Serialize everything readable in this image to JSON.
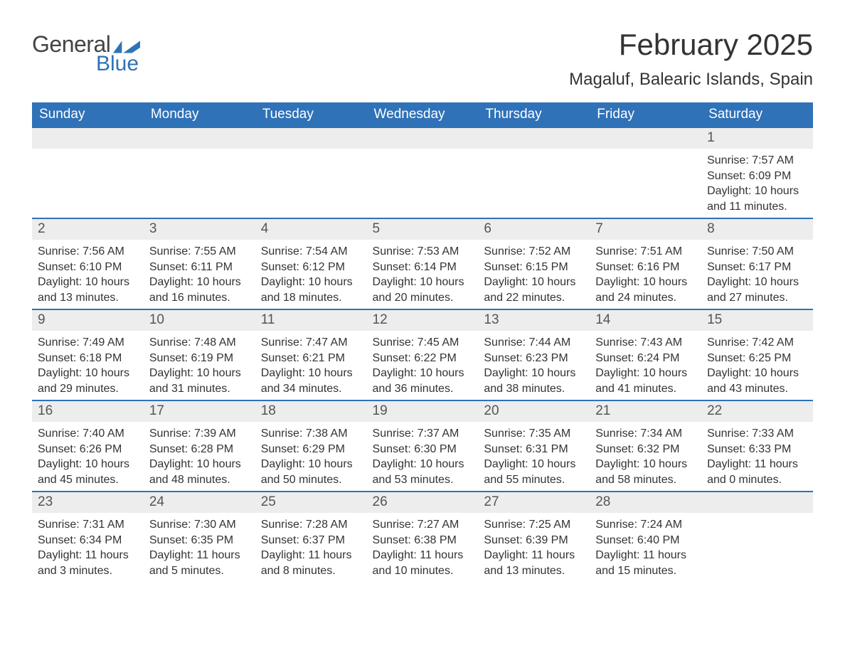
{
  "brand": {
    "part1": "General",
    "part2": "Blue"
  },
  "title": "February 2025",
  "location": "Magaluf, Balearic Islands, Spain",
  "colors": {
    "header_bg": "#2f72b8",
    "header_text": "#ffffff",
    "daynum_bg": "#ededed",
    "text": "#333333",
    "row_border": "#2f72b8",
    "page_bg": "#ffffff"
  },
  "fonts": {
    "title_size_pt": 32,
    "location_size_pt": 18,
    "weekday_size_pt": 14,
    "daynum_size_pt": 14,
    "body_size_pt": 12
  },
  "weekdays": [
    "Sunday",
    "Monday",
    "Tuesday",
    "Wednesday",
    "Thursday",
    "Friday",
    "Saturday"
  ],
  "weeks": [
    [
      null,
      null,
      null,
      null,
      null,
      null,
      {
        "n": "1",
        "sr": "7:57 AM",
        "ss": "6:09 PM",
        "dl": "10 hours and 11 minutes."
      }
    ],
    [
      {
        "n": "2",
        "sr": "7:56 AM",
        "ss": "6:10 PM",
        "dl": "10 hours and 13 minutes."
      },
      {
        "n": "3",
        "sr": "7:55 AM",
        "ss": "6:11 PM",
        "dl": "10 hours and 16 minutes."
      },
      {
        "n": "4",
        "sr": "7:54 AM",
        "ss": "6:12 PM",
        "dl": "10 hours and 18 minutes."
      },
      {
        "n": "5",
        "sr": "7:53 AM",
        "ss": "6:14 PM",
        "dl": "10 hours and 20 minutes."
      },
      {
        "n": "6",
        "sr": "7:52 AM",
        "ss": "6:15 PM",
        "dl": "10 hours and 22 minutes."
      },
      {
        "n": "7",
        "sr": "7:51 AM",
        "ss": "6:16 PM",
        "dl": "10 hours and 24 minutes."
      },
      {
        "n": "8",
        "sr": "7:50 AM",
        "ss": "6:17 PM",
        "dl": "10 hours and 27 minutes."
      }
    ],
    [
      {
        "n": "9",
        "sr": "7:49 AM",
        "ss": "6:18 PM",
        "dl": "10 hours and 29 minutes."
      },
      {
        "n": "10",
        "sr": "7:48 AM",
        "ss": "6:19 PM",
        "dl": "10 hours and 31 minutes."
      },
      {
        "n": "11",
        "sr": "7:47 AM",
        "ss": "6:21 PM",
        "dl": "10 hours and 34 minutes."
      },
      {
        "n": "12",
        "sr": "7:45 AM",
        "ss": "6:22 PM",
        "dl": "10 hours and 36 minutes."
      },
      {
        "n": "13",
        "sr": "7:44 AM",
        "ss": "6:23 PM",
        "dl": "10 hours and 38 minutes."
      },
      {
        "n": "14",
        "sr": "7:43 AM",
        "ss": "6:24 PM",
        "dl": "10 hours and 41 minutes."
      },
      {
        "n": "15",
        "sr": "7:42 AM",
        "ss": "6:25 PM",
        "dl": "10 hours and 43 minutes."
      }
    ],
    [
      {
        "n": "16",
        "sr": "7:40 AM",
        "ss": "6:26 PM",
        "dl": "10 hours and 45 minutes."
      },
      {
        "n": "17",
        "sr": "7:39 AM",
        "ss": "6:28 PM",
        "dl": "10 hours and 48 minutes."
      },
      {
        "n": "18",
        "sr": "7:38 AM",
        "ss": "6:29 PM",
        "dl": "10 hours and 50 minutes."
      },
      {
        "n": "19",
        "sr": "7:37 AM",
        "ss": "6:30 PM",
        "dl": "10 hours and 53 minutes."
      },
      {
        "n": "20",
        "sr": "7:35 AM",
        "ss": "6:31 PM",
        "dl": "10 hours and 55 minutes."
      },
      {
        "n": "21",
        "sr": "7:34 AM",
        "ss": "6:32 PM",
        "dl": "10 hours and 58 minutes."
      },
      {
        "n": "22",
        "sr": "7:33 AM",
        "ss": "6:33 PM",
        "dl": "11 hours and 0 minutes."
      }
    ],
    [
      {
        "n": "23",
        "sr": "7:31 AM",
        "ss": "6:34 PM",
        "dl": "11 hours and 3 minutes."
      },
      {
        "n": "24",
        "sr": "7:30 AM",
        "ss": "6:35 PM",
        "dl": "11 hours and 5 minutes."
      },
      {
        "n": "25",
        "sr": "7:28 AM",
        "ss": "6:37 PM",
        "dl": "11 hours and 8 minutes."
      },
      {
        "n": "26",
        "sr": "7:27 AM",
        "ss": "6:38 PM",
        "dl": "11 hours and 10 minutes."
      },
      {
        "n": "27",
        "sr": "7:25 AM",
        "ss": "6:39 PM",
        "dl": "11 hours and 13 minutes."
      },
      {
        "n": "28",
        "sr": "7:24 AM",
        "ss": "6:40 PM",
        "dl": "11 hours and 15 minutes."
      },
      null
    ]
  ],
  "labels": {
    "sunrise": "Sunrise: ",
    "sunset": "Sunset: ",
    "daylight": "Daylight: "
  }
}
